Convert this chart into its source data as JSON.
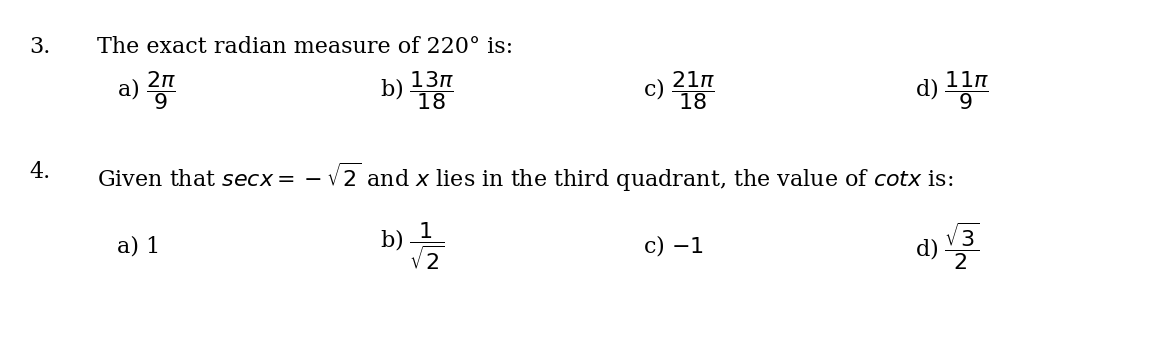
{
  "background_color": "#ffffff",
  "q3_number": "3.",
  "q3_text": "The exact radian measure of 220° is:",
  "q3_a": "a) $\\dfrac{2\\pi}{9}$",
  "q3_b": "b) $\\dfrac{13\\pi}{18}$",
  "q3_c": "c) $\\dfrac{21\\pi}{18}$",
  "q3_d": "d) $\\dfrac{11\\pi}{9}$",
  "q4_number": "4.",
  "q4_text": "Given that $\\mathit{sec}x = -\\sqrt{2}$ and $x$ lies in the third quadrant, the value of $\\mathit{cot}x$ is:",
  "q4_a": "a) 1",
  "q4_b": "b) $\\dfrac{1}{\\sqrt{2}}$",
  "q4_c": "c) −1",
  "q4_d": "d) $\\dfrac{\\sqrt{3}}{2}$",
  "font_size_main": 16,
  "font_size_options": 16,
  "text_color": "#000000"
}
